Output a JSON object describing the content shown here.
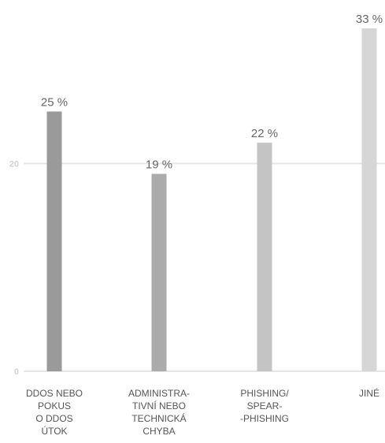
{
  "chart_data": {
    "type": "bar",
    "title": "",
    "xlabel": "",
    "ylabel": "",
    "ylim": [
      0,
      33
    ],
    "yticks": [
      0,
      20
    ],
    "grid": true,
    "legend": "none",
    "categories": [
      [
        "DDOS NEBO",
        "POKUS",
        "O DDOS",
        "ÚTOK"
      ],
      [
        "ADMINISTRA-",
        "TIVNÍ NEBO",
        "TECHNICKÁ",
        "CHYBA"
      ],
      [
        "PHISHING/",
        "SPEAR-",
        "-PHISHING"
      ],
      [
        "JINÉ"
      ]
    ],
    "values": [
      25,
      19,
      22,
      33
    ],
    "value_labels": [
      "25 %",
      "19 %",
      "22 %",
      "33 %"
    ],
    "colors": [
      "#9a9a9a",
      "#ababab",
      "#c4c4c4",
      "#d6d6d6"
    ],
    "gridline_color": "#e6e6e6",
    "tick_label_color": "#d2d2d2"
  }
}
